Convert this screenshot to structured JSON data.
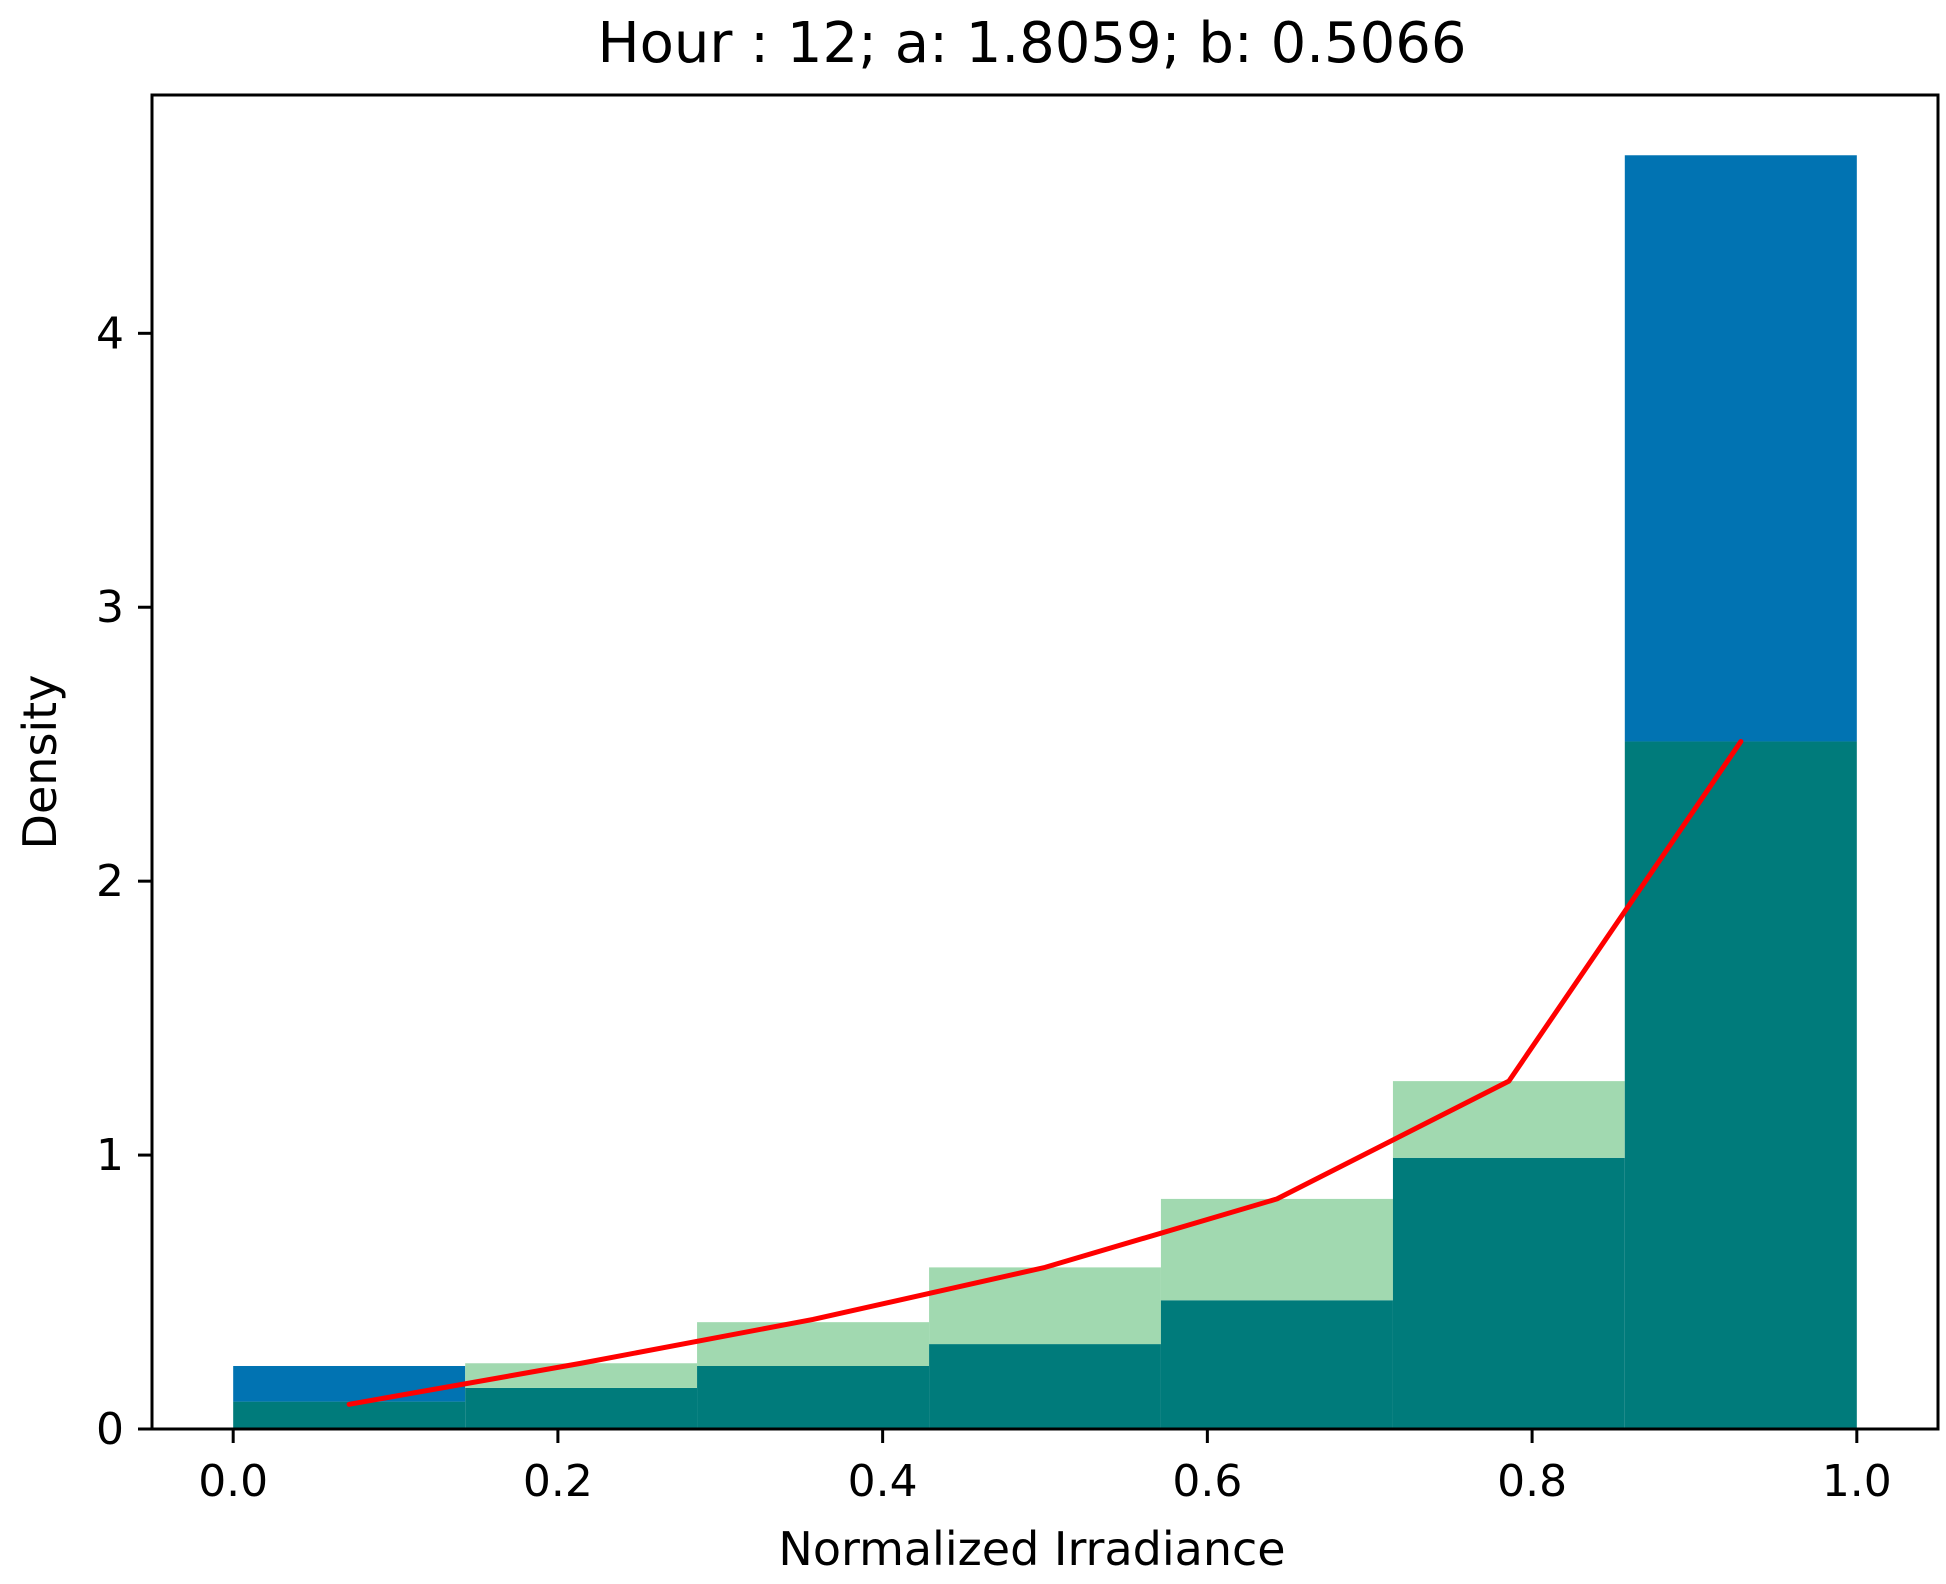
{
  "chart_data": {
    "type": "bar",
    "title": "Hour : 12; a: 1.8059; b: 0.5066",
    "xlabel": "Normalized Irradiance",
    "ylabel": "Density",
    "xlim": [
      -0.05,
      1.05
    ],
    "ylim": [
      0,
      4.87
    ],
    "xticks": [
      0.0,
      0.2,
      0.4,
      0.6,
      0.8,
      1.0
    ],
    "xtick_labels": [
      "0.0",
      "0.2",
      "0.4",
      "0.6",
      "0.8",
      "1.0"
    ],
    "yticks": [
      0,
      1,
      2,
      3,
      4
    ],
    "ytick_labels": [
      "0",
      "1",
      "2",
      "3",
      "4"
    ],
    "grid": false,
    "bin_edges": [
      0.0,
      0.1429,
      0.2857,
      0.4286,
      0.5714,
      0.7143,
      0.8571,
      1.0
    ],
    "series": [
      {
        "kind": "histogram",
        "color": "#0173b2",
        "values": [
          0.23,
          0.15,
          0.23,
          0.31,
          0.47,
          0.99,
          4.65
        ]
      },
      {
        "kind": "histogram",
        "color": "#a1d9b0",
        "values": [
          0.1,
          0.24,
          0.39,
          0.59,
          0.84,
          1.27,
          2.51
        ]
      },
      {
        "kind": "line",
        "color": "#ff0000",
        "x": [
          0.0714,
          0.2143,
          0.3571,
          0.5,
          0.6429,
          0.7857,
          0.9286
        ],
        "values": [
          0.09,
          0.24,
          0.4,
          0.59,
          0.84,
          1.27,
          2.51
        ]
      }
    ],
    "overlap_color": "#007b7b"
  }
}
